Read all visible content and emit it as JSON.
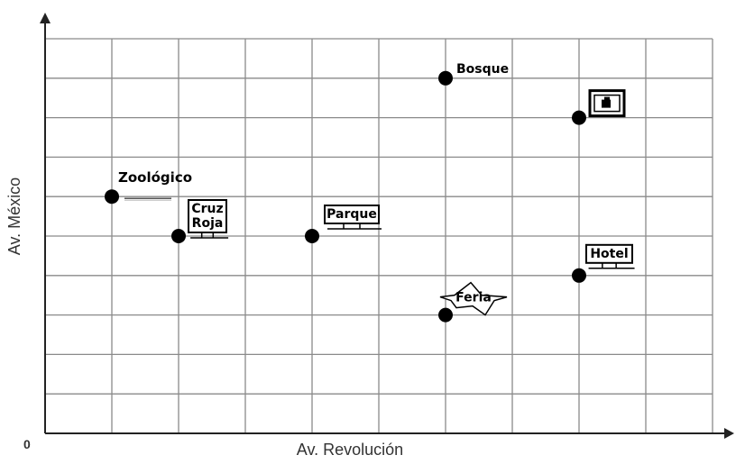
{
  "chart_data": {
    "type": "scatter",
    "title": "",
    "xlabel": "Av. Revolución",
    "ylabel": "Av. México",
    "origin_label": "0",
    "xlim": [
      0,
      10
    ],
    "ylim": [
      0,
      10
    ],
    "grid": true,
    "points": [
      {
        "x": 1,
        "y": 6,
        "label": "Zoológico",
        "icon": "street-sign"
      },
      {
        "x": 2,
        "y": 5,
        "label": "Cruz Roja",
        "icon": "building-sign"
      },
      {
        "x": 4,
        "y": 5,
        "label": "Parque",
        "icon": "building-sign"
      },
      {
        "x": 6,
        "y": 9,
        "label": "Bosque",
        "icon": "none"
      },
      {
        "x": 8,
        "y": 8,
        "label": "",
        "icon": "bank-icon"
      },
      {
        "x": 6,
        "y": 3,
        "label": "Feria",
        "icon": "star-sign"
      },
      {
        "x": 8,
        "y": 4,
        "label": "Hotel",
        "icon": "building-sign"
      }
    ]
  }
}
